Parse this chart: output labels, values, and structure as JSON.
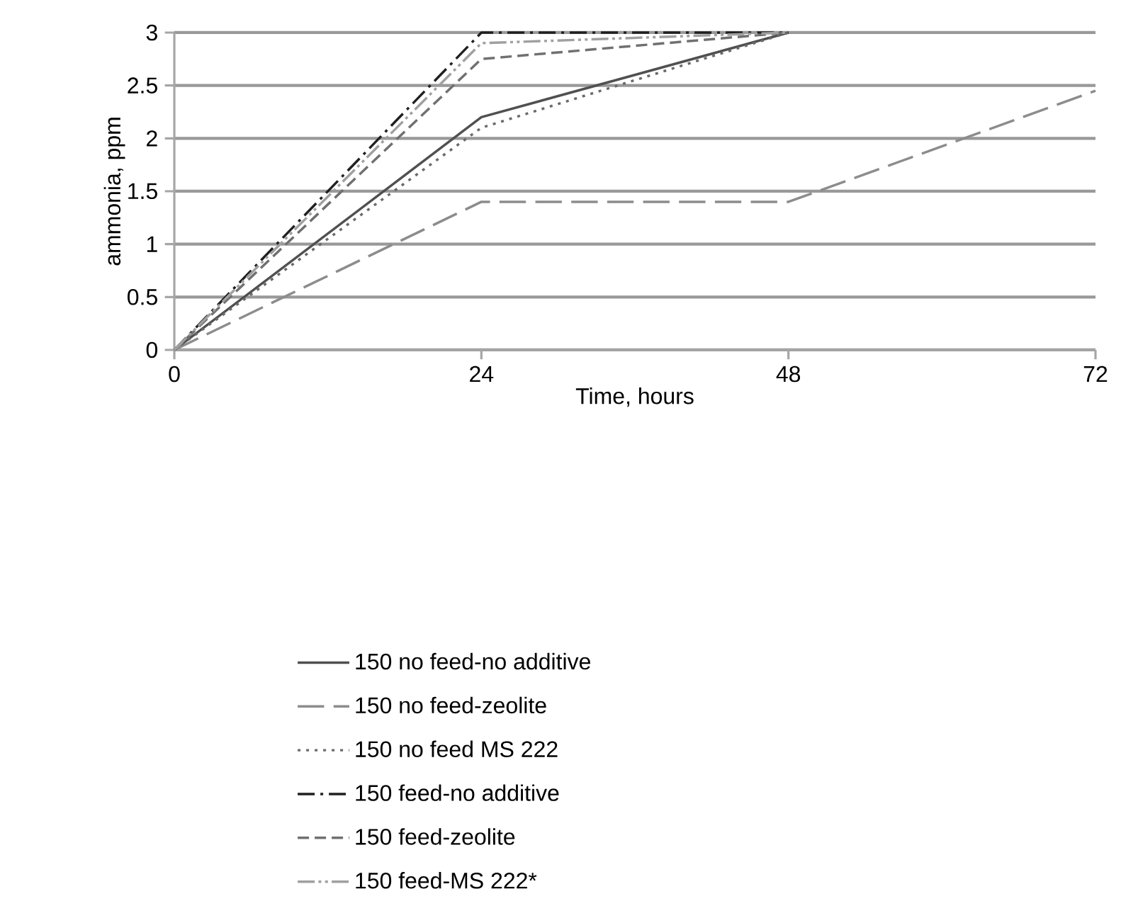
{
  "chart_data": {
    "type": "line",
    "xlabel": "Time, hours",
    "ylabel": "ammonia, ppm",
    "xlim": [
      0,
      72
    ],
    "xticks": [
      0,
      24,
      48,
      72
    ],
    "ylim": [
      0,
      3
    ],
    "yticks": [
      0,
      0.5,
      1,
      1.5,
      2,
      2.5,
      3
    ],
    "grid": "y",
    "legend": "bottom",
    "marker": "none",
    "series": [
      {
        "name": "150 no feed-no additive",
        "color": "#505050",
        "line_style": "solid",
        "x": [
          0,
          24,
          48
        ],
        "values": [
          0,
          2.2,
          3.0
        ]
      },
      {
        "name": "150 no feed-zeolite",
        "color": "#8c8c8c",
        "line_style": "longdash",
        "x": [
          0,
          24,
          48,
          72
        ],
        "values": [
          0,
          1.4,
          1.4,
          2.45
        ]
      },
      {
        "name": "150 no feed MS 222",
        "color": "#6a6a6a",
        "line_style": "dotted",
        "x": [
          0,
          24,
          48
        ],
        "values": [
          0,
          2.1,
          3.0
        ]
      },
      {
        "name": "150 feed-no additive",
        "color": "#202020",
        "line_style": "dashdot",
        "x": [
          0,
          24,
          48
        ],
        "values": [
          0,
          3.0,
          3.0
        ]
      },
      {
        "name": "150 feed-zeolite",
        "color": "#707070",
        "line_style": "dashed",
        "x": [
          0,
          24,
          48
        ],
        "values": [
          0,
          2.75,
          3.0
        ]
      },
      {
        "name": "150 feed-MS 222*",
        "color": "#a0a0a0",
        "line_style": "dashdotdot",
        "x": [
          0,
          24,
          48
        ],
        "values": [
          0,
          2.9,
          3.0
        ]
      }
    ]
  }
}
